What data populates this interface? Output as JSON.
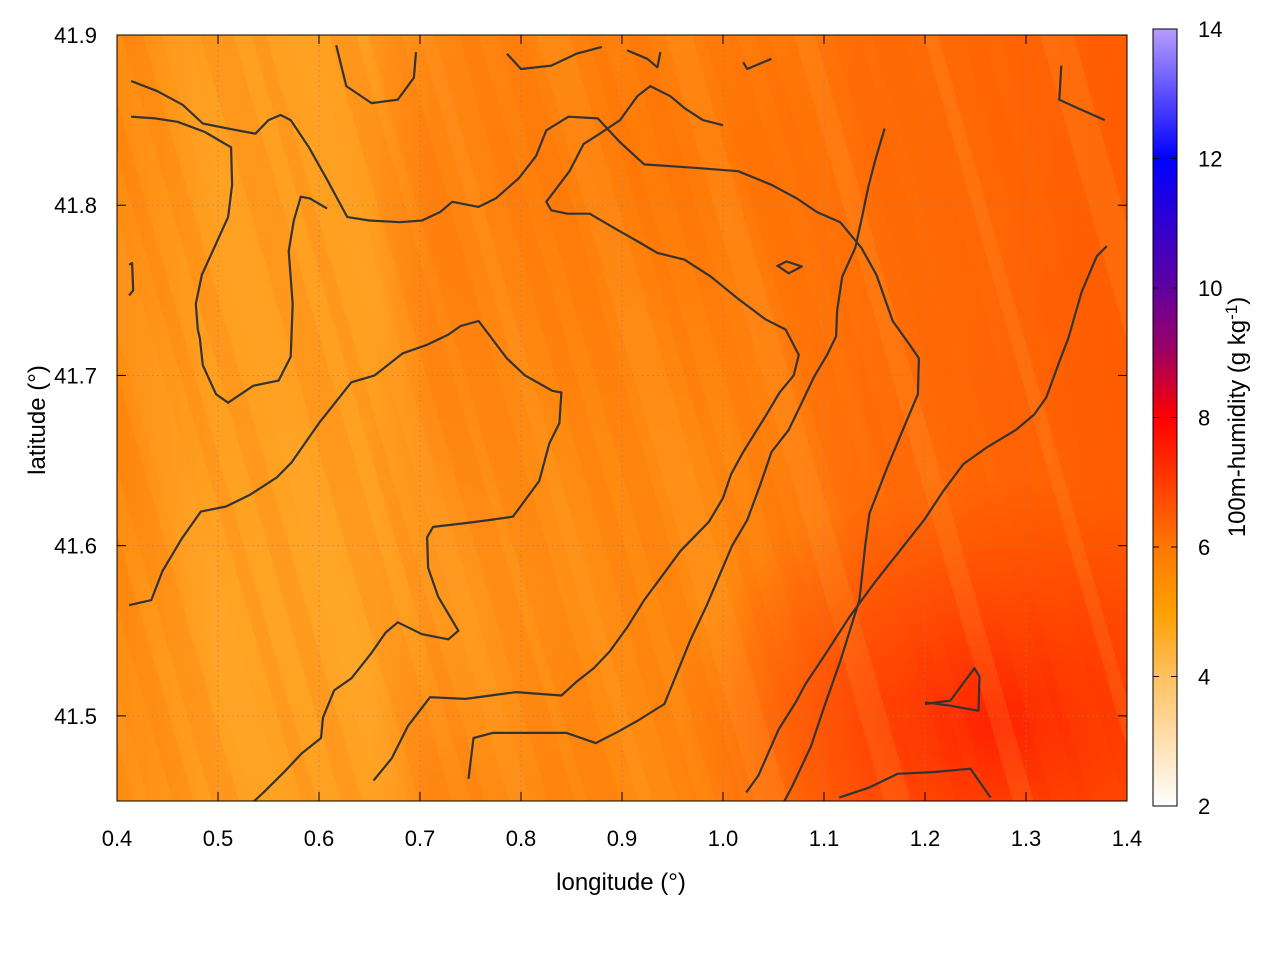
{
  "chart_data": {
    "type": "heatmap",
    "xlabel": "longitude (°)",
    "ylabel": "latitude (°)",
    "colorbar_label": "100m-humidity (g kg",
    "colorbar_label_sup": "-1",
    "colorbar_label_end": ")",
    "xlim": [
      0.4,
      1.4
    ],
    "ylim": [
      41.45,
      41.9
    ],
    "clim": [
      2,
      14
    ],
    "x_ticks": [
      {
        "value": 0.4,
        "label": "0.4"
      },
      {
        "value": 0.5,
        "label": "0.5"
      },
      {
        "value": 0.6,
        "label": "0.6"
      },
      {
        "value": 0.7,
        "label": "0.7"
      },
      {
        "value": 0.8,
        "label": "0.8"
      },
      {
        "value": 0.9,
        "label": "0.9"
      },
      {
        "value": 1.0,
        "label": "1.0"
      },
      {
        "value": 1.1,
        "label": "1.1"
      },
      {
        "value": 1.2,
        "label": "1.2"
      },
      {
        "value": 1.3,
        "label": "1.3"
      },
      {
        "value": 1.4,
        "label": "1.4"
      }
    ],
    "y_ticks": [
      {
        "value": 41.5,
        "label": "41.5"
      },
      {
        "value": 41.6,
        "label": "41.6"
      },
      {
        "value": 41.7,
        "label": "41.7"
      },
      {
        "value": 41.8,
        "label": "41.8"
      },
      {
        "value": 41.9,
        "label": "41.9"
      }
    ],
    "colorbar_ticks": [
      {
        "value": 2,
        "label": "2"
      },
      {
        "value": 4,
        "label": "4"
      },
      {
        "value": 6,
        "label": "6"
      },
      {
        "value": 8,
        "label": "8"
      },
      {
        "value": 10,
        "label": "10"
      },
      {
        "value": 12,
        "label": "12"
      },
      {
        "value": 14,
        "label": "14"
      }
    ],
    "colormap": [
      {
        "v": 2,
        "color": "#ffffff"
      },
      {
        "v": 4,
        "color": "#ffc060"
      },
      {
        "v": 5,
        "color": "#ffa000"
      },
      {
        "v": 6,
        "color": "#ff7800"
      },
      {
        "v": 8,
        "color": "#ff0000"
      },
      {
        "v": 9,
        "color": "#a00060"
      },
      {
        "v": 10,
        "color": "#6000a0"
      },
      {
        "v": 12,
        "color": "#0000ff"
      },
      {
        "v": 14,
        "color": "#b89cff"
      }
    ],
    "grid": true,
    "contour_color": "#333333",
    "contours": [
      [
        [
          0.414,
          41.873
        ],
        [
          0.44,
          41.867
        ],
        [
          0.465,
          41.859
        ],
        [
          0.485,
          41.848
        ],
        [
          0.51,
          41.845
        ],
        [
          0.537,
          41.842
        ],
        [
          0.55,
          41.85
        ],
        [
          0.562,
          41.853
        ],
        [
          0.572,
          41.85
        ],
        [
          0.59,
          41.834
        ],
        [
          0.608,
          41.815
        ],
        [
          0.628,
          41.793
        ],
        [
          0.65,
          41.791
        ],
        [
          0.68,
          41.79
        ],
        [
          0.702,
          41.791
        ],
        [
          0.72,
          41.796
        ],
        [
          0.732,
          41.802
        ],
        [
          0.758,
          41.799
        ],
        [
          0.775,
          41.804
        ],
        [
          0.798,
          41.816
        ],
        [
          0.815,
          41.829
        ],
        [
          0.825,
          41.844
        ],
        [
          0.847,
          41.852
        ],
        [
          0.876,
          41.851
        ],
        [
          0.898,
          41.837
        ],
        [
          0.922,
          41.824
        ],
        [
          0.972,
          41.822
        ],
        [
          1.015,
          41.82
        ],
        [
          1.048,
          41.812
        ],
        [
          1.073,
          41.804
        ],
        [
          1.093,
          41.796
        ],
        [
          1.116,
          41.79
        ],
        [
          1.137,
          41.775
        ],
        [
          1.152,
          41.759
        ],
        [
          1.168,
          41.732
        ],
        [
          1.186,
          41.717
        ],
        [
          1.194,
          41.71
        ],
        [
          1.193,
          41.689
        ],
        [
          1.178,
          41.668
        ],
        [
          1.162,
          41.645
        ],
        [
          1.145,
          41.619
        ],
        [
          1.141,
          41.601
        ],
        [
          1.135,
          41.568
        ],
        [
          1.116,
          41.532
        ],
        [
          1.1,
          41.505
        ],
        [
          1.087,
          41.482
        ],
        [
          1.068,
          41.458
        ],
        [
          1.048,
          41.436
        ],
        [
          1.035,
          41.415
        ],
        [
          1.027,
          41.397
        ],
        [
          1.015,
          41.381
        ]
      ],
      [
        [
          0.414,
          41.852
        ],
        [
          0.438,
          41.851
        ],
        [
          0.46,
          41.849
        ],
        [
          0.487,
          41.843
        ],
        [
          0.513,
          41.834
        ],
        [
          0.514,
          41.812
        ],
        [
          0.51,
          41.793
        ],
        [
          0.484,
          41.759
        ],
        [
          0.478,
          41.742
        ],
        [
          0.48,
          41.727
        ],
        [
          0.482,
          41.722
        ],
        [
          0.485,
          41.706
        ],
        [
          0.498,
          41.689
        ],
        [
          0.51,
          41.684
        ],
        [
          0.535,
          41.694
        ],
        [
          0.56,
          41.697
        ],
        [
          0.572,
          41.711
        ],
        [
          0.574,
          41.742
        ],
        [
          0.57,
          41.773
        ],
        [
          0.575,
          41.791
        ],
        [
          0.582,
          41.805
        ],
        [
          0.591,
          41.804
        ],
        [
          0.608,
          41.798
        ]
      ],
      [
        [
          0.412,
          41.765
        ],
        [
          0.415,
          41.766
        ],
        [
          0.416,
          41.75
        ],
        [
          0.412,
          41.747
        ]
      ],
      [
        [
          0.412,
          41.565
        ],
        [
          0.434,
          41.568
        ],
        [
          0.445,
          41.585
        ],
        [
          0.464,
          41.604
        ],
        [
          0.483,
          41.62
        ],
        [
          0.508,
          41.623
        ],
        [
          0.532,
          41.63
        ],
        [
          0.558,
          41.64
        ],
        [
          0.573,
          41.649
        ],
        [
          0.6,
          41.672
        ],
        [
          0.632,
          41.696
        ],
        [
          0.655,
          41.7
        ],
        [
          0.683,
          41.713
        ],
        [
          0.707,
          41.718
        ],
        [
          0.728,
          41.724
        ],
        [
          0.74,
          41.729
        ],
        [
          0.758,
          41.732
        ],
        [
          0.786,
          41.71
        ],
        [
          0.804,
          41.7
        ],
        [
          0.831,
          41.691
        ],
        [
          0.84,
          41.69
        ],
        [
          0.838,
          41.672
        ],
        [
          0.828,
          41.66
        ],
        [
          0.818,
          41.638
        ],
        [
          0.792,
          41.617
        ],
        [
          0.768,
          41.615
        ],
        [
          0.742,
          41.613
        ],
        [
          0.713,
          41.611
        ],
        [
          0.707,
          41.605
        ],
        [
          0.708,
          41.587
        ],
        [
          0.718,
          41.57
        ],
        [
          0.738,
          41.55
        ],
        [
          0.728,
          41.545
        ],
        [
          0.702,
          41.548
        ],
        [
          0.678,
          41.555
        ],
        [
          0.666,
          41.549
        ],
        [
          0.652,
          41.537
        ],
        [
          0.632,
          41.522
        ],
        [
          0.615,
          41.515
        ],
        [
          0.604,
          41.499
        ],
        [
          0.602,
          41.487
        ],
        [
          0.583,
          41.478
        ],
        [
          0.567,
          41.468
        ],
        [
          0.545,
          41.455
        ],
        [
          0.523,
          41.443
        ]
      ],
      [
        [
          0.654,
          41.462
        ],
        [
          0.672,
          41.475
        ],
        [
          0.688,
          41.494
        ],
        [
          0.71,
          41.511
        ],
        [
          0.745,
          41.51
        ],
        [
          0.77,
          41.512
        ],
        [
          0.795,
          41.514
        ],
        [
          0.84,
          41.512
        ],
        [
          0.855,
          41.52
        ],
        [
          0.872,
          41.528
        ],
        [
          0.888,
          41.538
        ],
        [
          0.905,
          41.552
        ],
        [
          0.922,
          41.568
        ],
        [
          0.958,
          41.597
        ],
        [
          0.986,
          41.614
        ],
        [
          1.0,
          41.628
        ],
        [
          1.008,
          41.642
        ],
        [
          1.02,
          41.655
        ],
        [
          1.042,
          41.676
        ],
        [
          1.056,
          41.69
        ],
        [
          1.07,
          41.7
        ],
        [
          1.075,
          41.712
        ],
        [
          1.062,
          41.727
        ],
        [
          1.042,
          41.733
        ],
        [
          1.015,
          41.745
        ],
        [
          0.988,
          41.758
        ],
        [
          0.962,
          41.768
        ],
        [
          0.935,
          41.772
        ],
        [
          0.912,
          41.78
        ],
        [
          0.894,
          41.786
        ],
        [
          0.868,
          41.795
        ],
        [
          0.846,
          41.795
        ],
        [
          0.83,
          41.797
        ],
        [
          0.825,
          41.802
        ],
        [
          0.848,
          41.82
        ],
        [
          0.862,
          41.836
        ],
        [
          0.878,
          41.842
        ],
        [
          0.898,
          41.85
        ],
        [
          0.915,
          41.864
        ],
        [
          0.928,
          41.87
        ],
        [
          0.948,
          41.864
        ],
        [
          0.962,
          41.857
        ],
        [
          0.98,
          41.85
        ],
        [
          1.0,
          41.847
        ]
      ],
      [
        [
          0.748,
          41.463
        ],
        [
          0.753,
          41.487
        ],
        [
          0.772,
          41.49
        ],
        [
          0.8,
          41.49
        ],
        [
          0.845,
          41.49
        ],
        [
          0.874,
          41.484
        ],
        [
          0.897,
          41.491
        ],
        [
          0.915,
          41.497
        ],
        [
          0.942,
          41.507
        ],
        [
          0.968,
          41.545
        ],
        [
          0.984,
          41.565
        ],
        [
          1.009,
          41.6
        ],
        [
          1.024,
          41.615
        ],
        [
          1.037,
          41.636
        ],
        [
          1.048,
          41.655
        ],
        [
          1.065,
          41.668
        ],
        [
          1.078,
          41.684
        ],
        [
          1.09,
          41.699
        ],
        [
          1.103,
          41.712
        ],
        [
          1.112,
          41.723
        ],
        [
          1.113,
          41.738
        ],
        [
          1.118,
          41.758
        ],
        [
          1.131,
          41.775
        ],
        [
          1.138,
          41.794
        ],
        [
          1.144,
          41.811
        ],
        [
          1.151,
          41.827
        ],
        [
          1.16,
          41.845
        ]
      ],
      [
        [
          1.023,
          41.455
        ],
        [
          1.035,
          41.465
        ],
        [
          1.055,
          41.492
        ],
        [
          1.072,
          41.508
        ],
        [
          1.082,
          41.519
        ],
        [
          1.1,
          41.535
        ],
        [
          1.125,
          41.558
        ],
        [
          1.151,
          41.579
        ],
        [
          1.175,
          41.597
        ],
        [
          1.199,
          41.615
        ],
        [
          1.218,
          41.632
        ],
        [
          1.238,
          41.648
        ],
        [
          1.262,
          41.658
        ],
        [
          1.29,
          41.668
        ],
        [
          1.308,
          41.677
        ],
        [
          1.32,
          41.687
        ],
        [
          1.333,
          41.708
        ],
        [
          1.342,
          41.722
        ],
        [
          1.355,
          41.749
        ],
        [
          1.37,
          41.77
        ],
        [
          1.38,
          41.776
        ]
      ],
      [
        [
          1.115,
          41.452
        ],
        [
          1.145,
          41.458
        ],
        [
          1.173,
          41.466
        ],
        [
          1.208,
          41.467
        ],
        [
          1.245,
          41.469
        ],
        [
          1.265,
          41.452
        ]
      ],
      [
        [
          1.2,
          41.507
        ],
        [
          1.225,
          41.509
        ],
        [
          1.249,
          41.528
        ],
        [
          1.254,
          41.523
        ],
        [
          1.253,
          41.503
        ],
        [
          1.225,
          41.506
        ],
        [
          1.2,
          41.508
        ]
      ],
      [
        [
          1.053,
          41.764
        ],
        [
          1.063,
          41.767
        ],
        [
          1.078,
          41.764
        ],
        [
          1.065,
          41.76
        ],
        [
          1.055,
          41.764
        ]
      ],
      [
        [
          0.617,
          41.894
        ],
        [
          0.627,
          41.87
        ],
        [
          0.652,
          41.86
        ],
        [
          0.678,
          41.862
        ],
        [
          0.694,
          41.875
        ],
        [
          0.696,
          41.89
        ]
      ],
      [
        [
          0.786,
          41.889
        ],
        [
          0.8,
          41.88
        ],
        [
          0.83,
          41.882
        ],
        [
          0.855,
          41.889
        ],
        [
          0.88,
          41.893
        ]
      ],
      [
        [
          0.905,
          41.891
        ],
        [
          0.925,
          41.886
        ],
        [
          0.935,
          41.881
        ],
        [
          0.938,
          41.89
        ]
      ],
      [
        [
          1.02,
          41.884
        ],
        [
          1.024,
          41.88
        ],
        [
          1.048,
          41.886
        ]
      ],
      [
        [
          1.335,
          41.882
        ],
        [
          1.333,
          41.862
        ],
        [
          1.355,
          41.856
        ],
        [
          1.378,
          41.85
        ]
      ]
    ]
  }
}
